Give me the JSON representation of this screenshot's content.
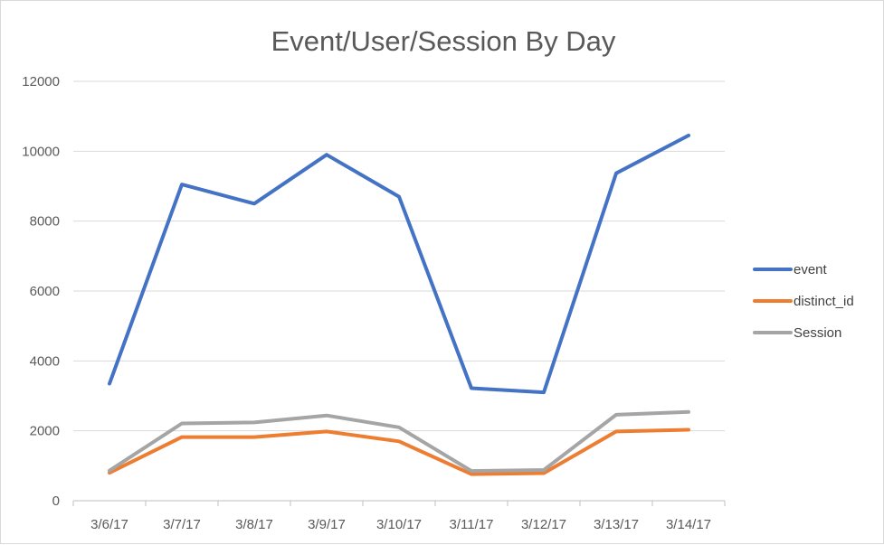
{
  "chart_data": {
    "type": "line",
    "title": "Event/User/Session By Day",
    "xlabel": "",
    "ylabel": "",
    "categories": [
      "3/6/17",
      "3/7/17",
      "3/8/17",
      "3/9/17",
      "3/10/17",
      "3/11/17",
      "3/12/17",
      "3/13/17",
      "3/14/17"
    ],
    "ylim": [
      0,
      12000
    ],
    "yticks": [
      0,
      2000,
      4000,
      6000,
      8000,
      10000,
      12000
    ],
    "grid": true,
    "legend_position": "right",
    "series": [
      {
        "name": "event",
        "color": "#4472C4",
        "values": [
          3350,
          9050,
          8500,
          9900,
          8700,
          3220,
          3100,
          9370,
          10450
        ]
      },
      {
        "name": "distinct_id",
        "color": "#ED7D31",
        "values": [
          800,
          1820,
          1820,
          1980,
          1700,
          760,
          790,
          1980,
          2030
        ]
      },
      {
        "name": "Session",
        "color": "#A5A5A5",
        "values": [
          860,
          2210,
          2240,
          2440,
          2100,
          850,
          880,
          2460,
          2540
        ]
      }
    ]
  }
}
